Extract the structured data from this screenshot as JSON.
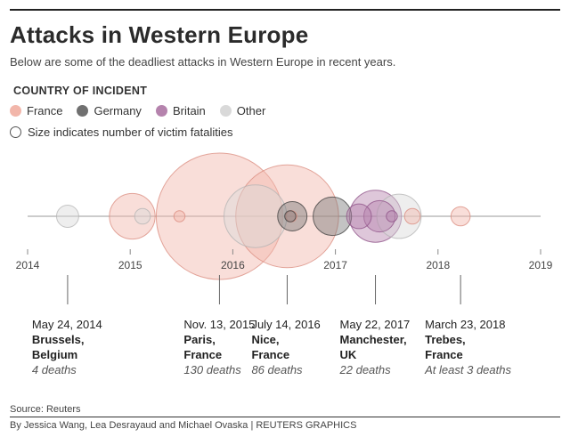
{
  "header": {
    "title": "Attacks in Western Europe",
    "subtitle": "Below are some of the deadliest attacks in Western Europe in recent years."
  },
  "legend": {
    "heading": "COUNTRY OF INCIDENT",
    "items": [
      {
        "label": "France",
        "color": "#f2b6aa"
      },
      {
        "label": "Germany",
        "color": "#707070"
      },
      {
        "label": "Britain",
        "color": "#b583ad"
      },
      {
        "label": "Other",
        "color": "#d9d9d9"
      }
    ],
    "size_note": "Size indicates number of victim fatalities"
  },
  "chart_data": {
    "type": "scatter",
    "encoding": "bubble timeline; x = date (year), circle area = victim fatalities",
    "xlim": [
      2014,
      2019
    ],
    "x_ticks": [
      "2014",
      "2015",
      "2016",
      "2017",
      "2018",
      "2019"
    ],
    "series": [
      {
        "name": "France",
        "points": [
          {
            "x": 2015.02,
            "deaths": 17
          },
          {
            "x": 2015.48,
            "deaths": 1
          },
          {
            "x": 2015.87,
            "deaths": 130
          },
          {
            "x": 2016.53,
            "deaths": 86
          },
          {
            "x": 2016.57,
            "deaths": 1
          },
          {
            "x": 2017.75,
            "deaths": 2
          },
          {
            "x": 2018.22,
            "deaths": 3
          }
        ]
      },
      {
        "name": "Germany",
        "points": [
          {
            "x": 2016.56,
            "deaths": 1
          },
          {
            "x": 2016.58,
            "deaths": 7
          },
          {
            "x": 2016.97,
            "deaths": 12
          }
        ]
      },
      {
        "name": "Britain",
        "points": [
          {
            "x": 2017.23,
            "deaths": 5
          },
          {
            "x": 2017.39,
            "deaths": 22
          },
          {
            "x": 2017.43,
            "deaths": 8
          },
          {
            "x": 2017.55,
            "deaths": 1
          }
        ]
      },
      {
        "name": "Other",
        "points": [
          {
            "x": 2014.39,
            "deaths": 4
          },
          {
            "x": 2015.12,
            "deaths": 2
          },
          {
            "x": 2016.22,
            "deaths": 32
          },
          {
            "x": 2017.62,
            "deaths": 16
          }
        ]
      }
    ],
    "annotations": [
      {
        "x": 2014.39,
        "date": "May 24, 2014",
        "place": "Brussels,\nBelgium",
        "deaths": "4 deaths"
      },
      {
        "x": 2015.87,
        "date": "Nov. 13, 2015",
        "place": "Paris,\nFrance",
        "deaths": "130 deaths"
      },
      {
        "x": 2016.53,
        "date": "July 14, 2016",
        "place": "Nice,\nFrance",
        "deaths": "86 deaths"
      },
      {
        "x": 2017.39,
        "date": "May 22, 2017",
        "place": "Manchester,\nUK",
        "deaths": "22 deaths"
      },
      {
        "x": 2018.22,
        "date": "March 23, 2018",
        "place": "Trebes,\nFrance",
        "deaths": "At least 3 deaths"
      }
    ]
  },
  "footer": {
    "source": "Source: Reuters",
    "credit": "By Jessica Wang, Lea Desrayaud and Michael Ovaska | REUTERS GRAPHICS"
  }
}
